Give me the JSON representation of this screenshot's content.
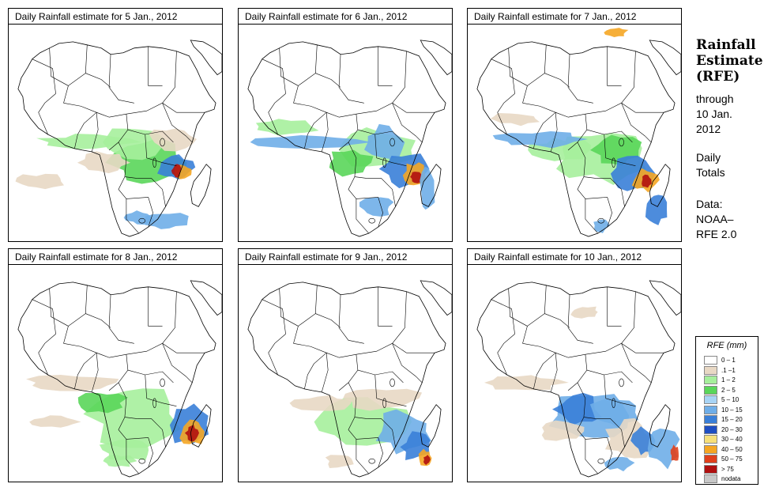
{
  "panels": [
    {
      "title": "Daily Rainfall estimate for  5 Jan., 2012",
      "date": "5 Jan., 2012"
    },
    {
      "title": "Daily Rainfall estimate for  6 Jan., 2012",
      "date": "6 Jan., 2012"
    },
    {
      "title": "Daily Rainfall estimate for  7 Jan., 2012",
      "date": "7 Jan., 2012"
    },
    {
      "title": "Daily Rainfall estimate for  8 Jan., 2012",
      "date": "8 Jan., 2012"
    },
    {
      "title": "Daily Rainfall estimate for  9 Jan., 2012",
      "date": "9 Jan., 2012"
    },
    {
      "title": "Daily Rainfall estimate for  10 Jan., 2012",
      "date": "10 Jan., 2012"
    }
  ],
  "side": {
    "title_line1": "Rainfall",
    "title_line2": "Estimate",
    "title_line3": "(RFE)",
    "through_line1": "through",
    "through_line2": "10 Jan.",
    "through_line3": "2012",
    "daily_line1": "Daily",
    "daily_line2": "Totals",
    "data_line1": "Data:",
    "data_line2": "NOAA–",
    "data_line3": "RFE 2.0"
  },
  "legend": {
    "title": "RFE (mm)",
    "items": [
      {
        "label": "0 – 1",
        "color": "#ffffff"
      },
      {
        "label": ".1 –1",
        "color": "#e8d8c4"
      },
      {
        "label": "1 – 2",
        "color": "#a6ef9c"
      },
      {
        "label": "2 – 5",
        "color": "#5ad65a"
      },
      {
        "label": "5 – 10",
        "color": "#a8d4f5"
      },
      {
        "label": "10 – 15",
        "color": "#6faee8"
      },
      {
        "label": "15 – 20",
        "color": "#3a7fd8"
      },
      {
        "label": "20 – 30",
        "color": "#1f4fc2"
      },
      {
        "label": "30 – 40",
        "color": "#f7e07a"
      },
      {
        "label": "40 – 50",
        "color": "#f5a623"
      },
      {
        "label": "50 – 75",
        "color": "#e0401c"
      },
      {
        "label": "> 75",
        "color": "#b01010"
      },
      {
        "label": "nodata",
        "color": "#c8c8c8"
      }
    ]
  }
}
